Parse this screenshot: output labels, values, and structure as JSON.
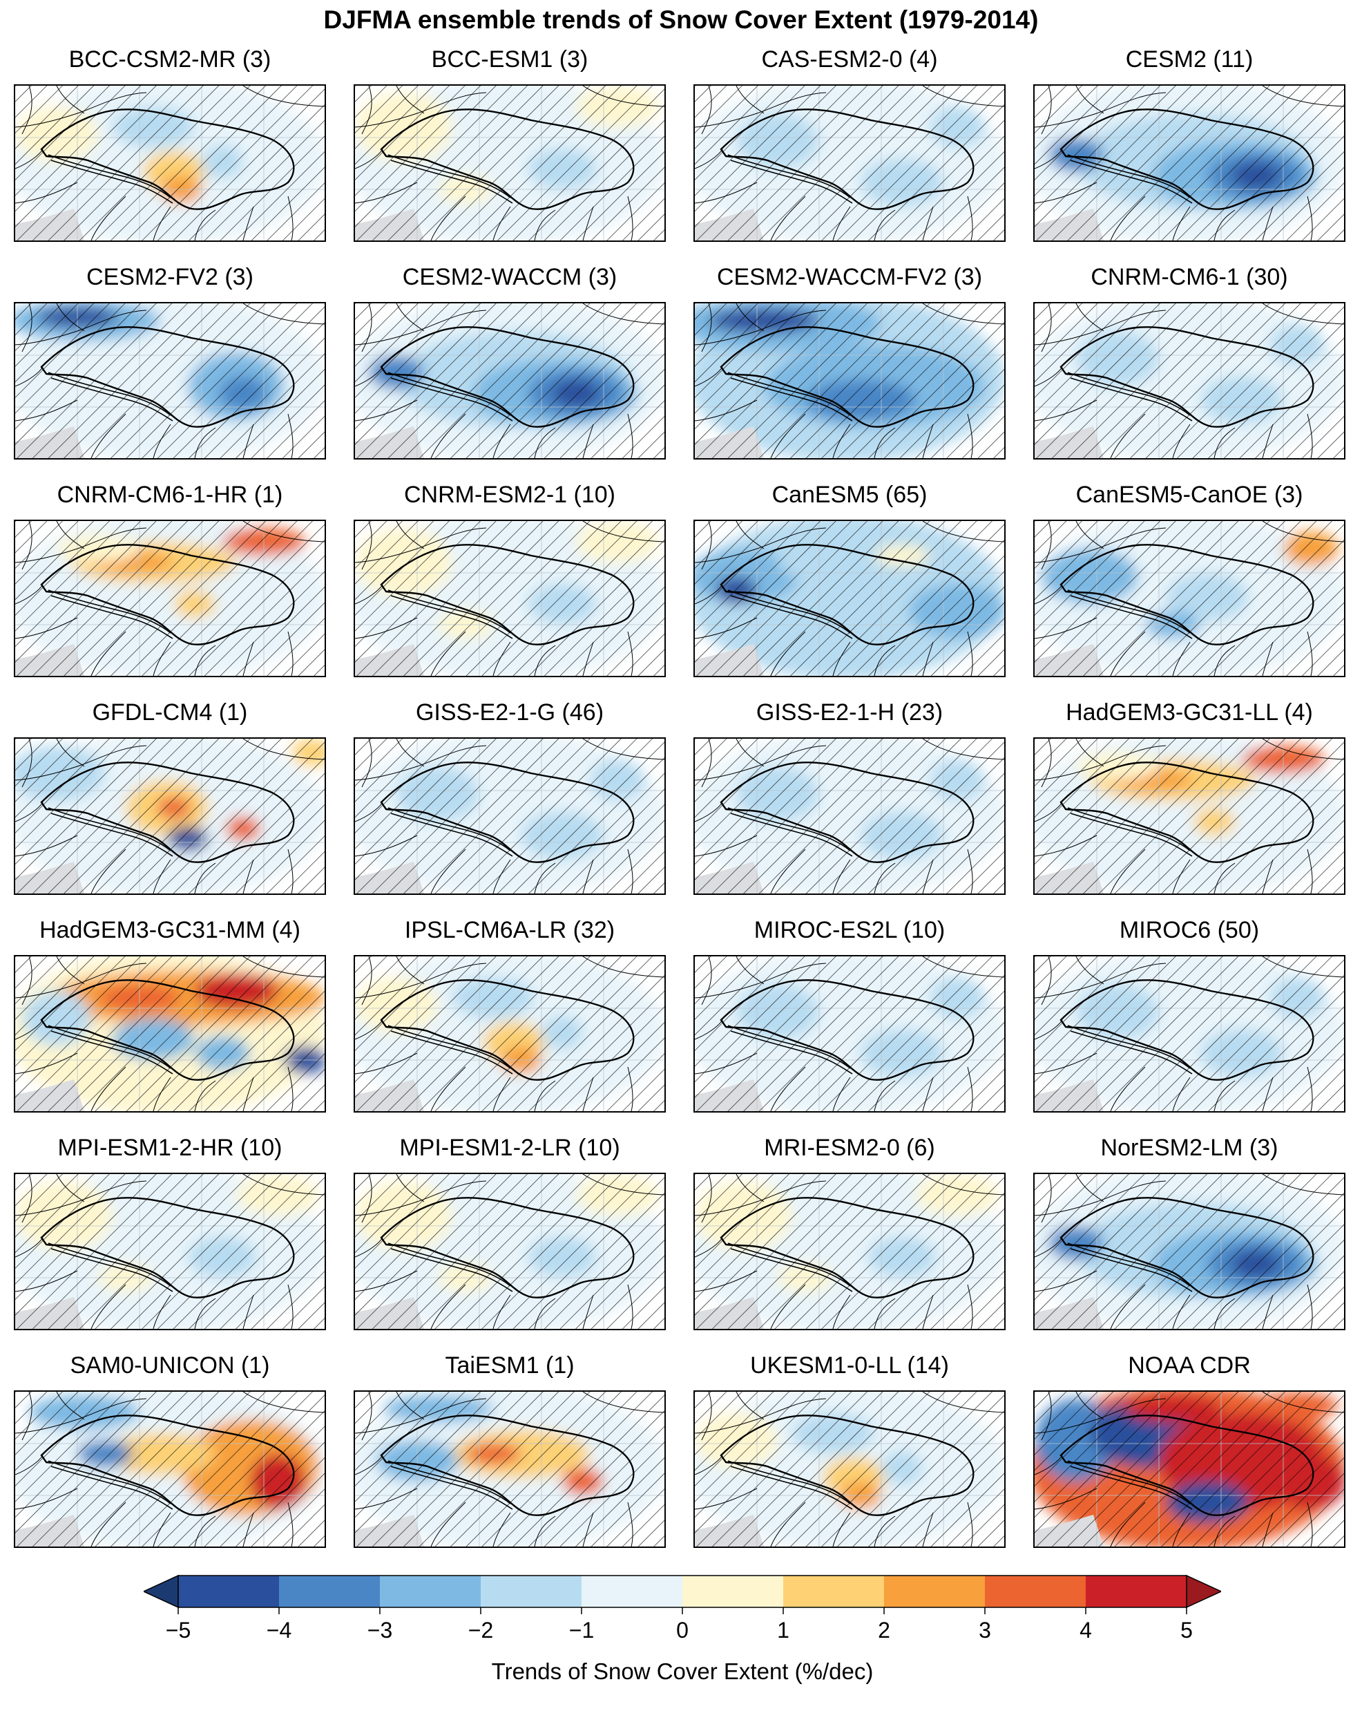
{
  "figure": {
    "title": "DJFMA ensemble trends of Snow Cover Extent (1979-2014)"
  },
  "panels": [
    {
      "title": "BCC-CSM2-MR (3)",
      "pattern": "light-orange-center"
    },
    {
      "title": "BCC-ESM1 (3)",
      "pattern": "light-mixed"
    },
    {
      "title": "CAS-ESM2-0 (4)",
      "pattern": "light-blue"
    },
    {
      "title": "CESM2 (11)",
      "pattern": "strong-blue-east"
    },
    {
      "title": "CESM2-FV2 (3)",
      "pattern": "blue-north-east"
    },
    {
      "title": "CESM2-WACCM (3)",
      "pattern": "strong-blue-east"
    },
    {
      "title": "CESM2-WACCM-FV2 (3)",
      "pattern": "strong-blue-wide"
    },
    {
      "title": "CNRM-CM6-1 (30)",
      "pattern": "light-blue"
    },
    {
      "title": "CNRM-CM6-1-HR (1)",
      "pattern": "orange-north"
    },
    {
      "title": "CNRM-ESM2-1 (10)",
      "pattern": "light-mixed"
    },
    {
      "title": "CanESM5 (65)",
      "pattern": "blue-wide"
    },
    {
      "title": "CanESM5-CanOE (3)",
      "pattern": "blue-mixed"
    },
    {
      "title": "GFDL-CM4 (1)",
      "pattern": "red-spots"
    },
    {
      "title": "GISS-E2-1-G (46)",
      "pattern": "light-blue"
    },
    {
      "title": "GISS-E2-1-H (23)",
      "pattern": "light-blue"
    },
    {
      "title": "HadGEM3-GC31-LL (4)",
      "pattern": "orange-north"
    },
    {
      "title": "HadGEM3-GC31-MM (4)",
      "pattern": "red-north"
    },
    {
      "title": "IPSL-CM6A-LR (32)",
      "pattern": "light-orange-center"
    },
    {
      "title": "MIROC-ES2L (10)",
      "pattern": "light-blue"
    },
    {
      "title": "MIROC6 (50)",
      "pattern": "light-blue"
    },
    {
      "title": "MPI-ESM1-2-HR (10)",
      "pattern": "light-mixed"
    },
    {
      "title": "MPI-ESM1-2-LR (10)",
      "pattern": "light-mixed"
    },
    {
      "title": "MRI-ESM2-0 (6)",
      "pattern": "light-mixed"
    },
    {
      "title": "NorESM2-LM (3)",
      "pattern": "strong-blue-east"
    },
    {
      "title": "SAM0-UNICON (1)",
      "pattern": "red-east"
    },
    {
      "title": "TaiESM1 (1)",
      "pattern": "orange-center"
    },
    {
      "title": "UKESM1-0-LL (14)",
      "pattern": "light-orange-center"
    },
    {
      "title": "NOAA CDR",
      "pattern": "strong-red"
    }
  ],
  "colorbar": {
    "label": "Trends of Snow Cover Extent (%/dec)",
    "ticks": [
      "−5",
      "−4",
      "−3",
      "−2",
      "−1",
      "0",
      "1",
      "2",
      "3",
      "4",
      "5"
    ],
    "colors": [
      "#2a4f9c",
      "#4a86c6",
      "#7db9e3",
      "#b7dcf1",
      "#e8f4fa",
      "#fef6cf",
      "#fdd174",
      "#f7a03c",
      "#ec6430",
      "#cb2027"
    ],
    "under_color": "#1c3a72",
    "over_color": "#9a1a1f"
  }
}
